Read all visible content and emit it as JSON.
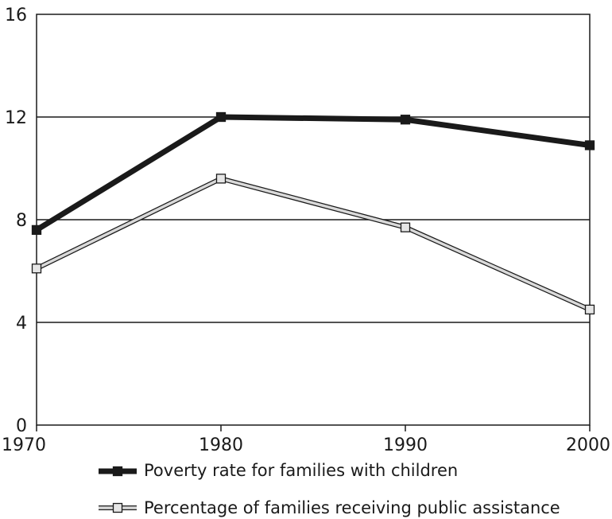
{
  "chart_data": {
    "type": "line",
    "x": [
      1970,
      1980,
      1990,
      2000
    ],
    "x_tick_labels": [
      "1970",
      "1980",
      "1990",
      "2000"
    ],
    "ylim": [
      0,
      16
    ],
    "y_ticks": [
      0,
      4,
      8,
      12,
      16
    ],
    "y_tick_labels": [
      "0",
      "4",
      "8",
      "12",
      "16"
    ],
    "grid": "horizontal",
    "legend_placement": "bottom",
    "series": [
      {
        "name": "Poverty rate for families with children",
        "values": [
          7.6,
          12.0,
          11.9,
          10.9
        ],
        "color": "#1a1a1a",
        "marker": "filled-square"
      },
      {
        "name": "Percentage of families receiving public assistance",
        "values": [
          6.1,
          9.6,
          7.7,
          4.5
        ],
        "color": "#d9d9d9",
        "marker": "hollow-square"
      }
    ]
  }
}
